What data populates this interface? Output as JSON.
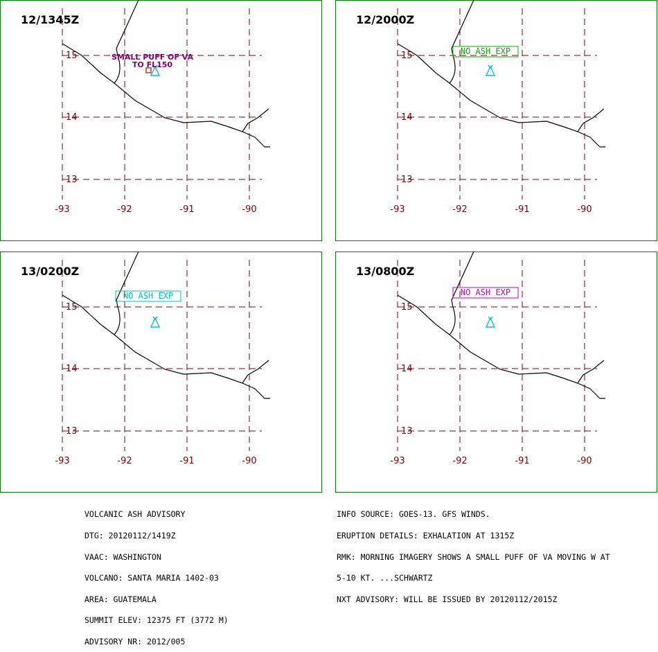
{
  "panels": [
    {
      "time": "12/1345Z",
      "annotation": {
        "kind": "ash",
        "lines": [
          "SMALL PUFF OF VA",
          "TO FL150"
        ],
        "color": "#800080"
      },
      "lat_labels": [
        "15",
        "14",
        "13"
      ],
      "lon_labels": [
        "-93",
        "-92",
        "-91",
        "-90"
      ]
    },
    {
      "time": "12/2000Z",
      "annotation": {
        "kind": "box",
        "text": "NO ASH EXP",
        "color": "#00b000"
      },
      "lat_labels": [
        "15",
        "14",
        "13"
      ],
      "lon_labels": [
        "-93",
        "-92",
        "-91",
        "-90"
      ]
    },
    {
      "time": "13/0200Z",
      "annotation": {
        "kind": "box",
        "text": "NO ASH EXP",
        "color": "#00c0c0"
      },
      "lat_labels": [
        "15",
        "14",
        "13"
      ],
      "lon_labels": [
        "-93",
        "-92",
        "-91",
        "-90"
      ]
    },
    {
      "time": "13/0800Z",
      "annotation": {
        "kind": "box",
        "text": "NO ASH EXP",
        "color": "#c000c0"
      },
      "lat_labels": [
        "15",
        "14",
        "13"
      ],
      "lon_labels": [
        "-93",
        "-92",
        "-91",
        "-90"
      ]
    }
  ],
  "colors": {
    "panel_border": "#008000",
    "grid": "#800000",
    "coastline": "#000000",
    "volcano": "#00c0e0",
    "text": "#000000"
  },
  "volcano_icon": "volcano-triangle-icon",
  "advisory_left": [
    "VOLCANIC ASH ADVISORY",
    "DTG: 20120112/1419Z",
    "VAAC: WASHINGTON",
    "VOLCANO: SANTA MARIA 1402-03",
    "AREA: GUATEMALA",
    "SUMMIT ELEV: 12375 FT (3772 M)",
    "ADVISORY NR: 2012/005"
  ],
  "advisory_right": [
    "INFO SOURCE: GOES-13. GFS WINDS.",
    "ERUPTION DETAILS: EXHALATION AT 1315Z",
    "RMK: MORNING IMAGERY SHOWS A SMALL PUFF OF VA MOVING W AT",
    "5-10 KT. ...SCHWARTZ",
    "NXT ADVISORY: WILL BE ISSUED BY 20120112/2015Z"
  ]
}
